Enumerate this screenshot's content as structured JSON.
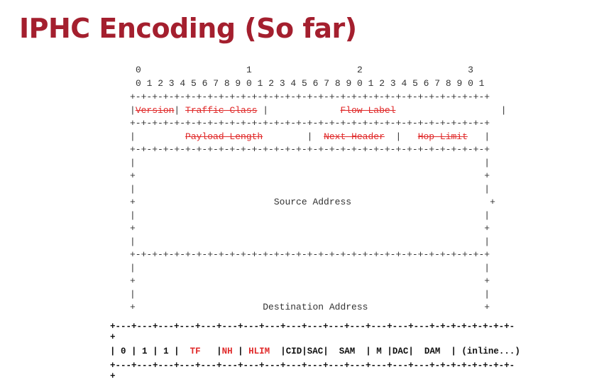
{
  "title": "IPHC Encoding (So far)",
  "ipv6_header": {
    "ruler_tens": "0                   1                   2                   3",
    "ruler_ones": "0 1 2 3 4 5 6 7 8 9 0 1 2 3 4 5 6 7 8 9 0 1 2 3 4 5 6 7 8 9 0 1",
    "border": "+-+-+-+-+-+-+-+-+-+-+-+-+-+-+-+-+-+-+-+-+-+-+-+-+-+-+-+-+-+-+-+-+",
    "fields": {
      "version": "Version",
      "traffic_class": "Traffic Class",
      "flow_label": "Flow Label",
      "payload_length": "Payload Length",
      "next_header": "Next Header",
      "hop_limit": "Hop Limit",
      "source_address": "Source Address",
      "destination_address": "Destination Address"
    }
  },
  "iphc": {
    "border": "+---+---+---+---+---+---+---+---+---+---+---+---+---+---+---+-+-+-+-+-+-+-+-",
    "border_tail": "+",
    "cells": {
      "b0": "0",
      "b1": "1",
      "b2": "1",
      "tf": "TF",
      "nh": "NH",
      "hlim": "HLIM",
      "cid": "CID",
      "sac": "SAC",
      "sam": "SAM",
      "m": "M",
      "dac": "DAC",
      "dam": "DAM",
      "inline": "(inline...)"
    }
  },
  "colors": {
    "title": "#a41f2e",
    "elided": "#e02a2a"
  }
}
